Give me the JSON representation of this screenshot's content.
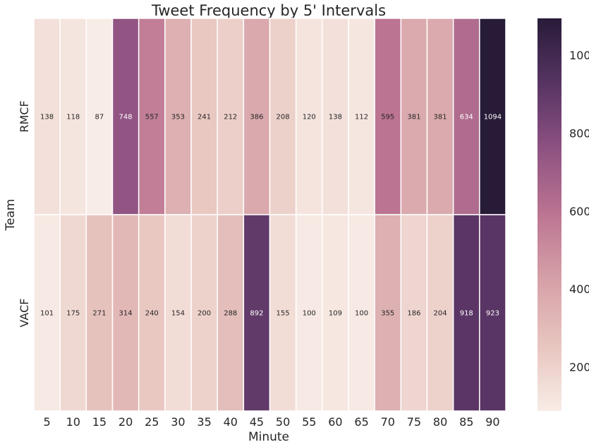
{
  "chart_data": {
    "type": "heatmap",
    "title": "Tweet Frequency by 5' Intervals",
    "xlabel": "Minute",
    "ylabel": "Team",
    "x_categories": [
      "5",
      "10",
      "15",
      "20",
      "25",
      "30",
      "35",
      "40",
      "45",
      "50",
      "55",
      "60",
      "65",
      "70",
      "75",
      "80",
      "85",
      "90"
    ],
    "y_categories": [
      "RMCF",
      "VACF"
    ],
    "values": [
      [
        138,
        118,
        87,
        748,
        557,
        353,
        241,
        212,
        386,
        208,
        120,
        138,
        112,
        595,
        381,
        381,
        634,
        1094
      ],
      [
        101,
        175,
        271,
        314,
        240,
        154,
        200,
        288,
        892,
        155,
        100,
        109,
        100,
        355,
        186,
        204,
        918,
        923
      ]
    ],
    "colorbar": {
      "range": [
        87,
        1094
      ],
      "ticks": [
        200,
        400,
        600,
        800,
        1000
      ],
      "colors": [
        "#f8ece6",
        "#e8c5bf",
        "#d6a1a8",
        "#bc7592",
        "#8e5282",
        "#573463",
        "#281b38"
      ]
    },
    "grid": false,
    "cell_annotations": true
  }
}
